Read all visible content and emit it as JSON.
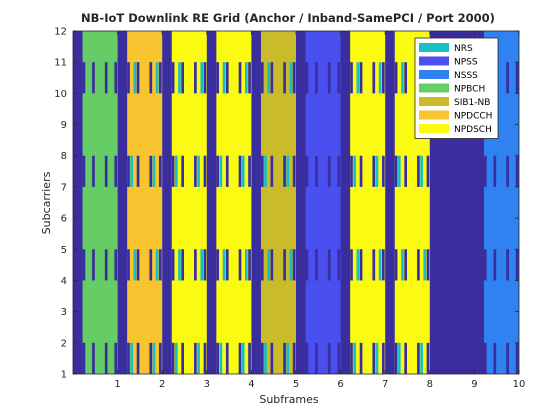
{
  "chart_data": {
    "type": "heatmap",
    "title": "NB-IoT Downlink RE Grid (Anchor / Inband-SamePCI / Port 2000)",
    "xlabel": "Subframes",
    "ylabel": "Subcarriers",
    "xlim": [
      0,
      10
    ],
    "ylim": [
      1,
      12
    ],
    "xticks": [
      1,
      2,
      3,
      4,
      5,
      6,
      7,
      8,
      9,
      10
    ],
    "yticks": [
      1,
      2,
      3,
      4,
      5,
      6,
      7,
      8,
      9,
      10,
      11,
      12
    ],
    "background_color": "#3a2e9e",
    "legend_position": "top-right",
    "legend": [
      {
        "name": "NRS",
        "color": "#17bfc6"
      },
      {
        "name": "NPSS",
        "color": "#4a4ff0"
      },
      {
        "name": "NSSS",
        "color": "#2f82f0"
      },
      {
        "name": "NPBCH",
        "color": "#66cc66"
      },
      {
        "name": "SIB1-NB",
        "color": "#c9bb2a"
      },
      {
        "name": "NPDCCH",
        "color": "#f8c531"
      },
      {
        "name": "NPDSCH",
        "color": "#fbfb12"
      }
    ],
    "legend_fontsize_note": "",
    "subframes": [
      {
        "subframe": 0,
        "channel": "NPBCH",
        "start_symbol": 3,
        "nrs": false
      },
      {
        "subframe": 1,
        "channel": "NPDCCH",
        "start_symbol": 3,
        "nrs": true
      },
      {
        "subframe": 2,
        "channel": "NPDSCH",
        "start_symbol": 3,
        "nrs": true
      },
      {
        "subframe": 3,
        "channel": "NPDSCH",
        "start_symbol": 3,
        "nrs": true
      },
      {
        "subframe": 4,
        "channel": "SIB1-NB",
        "start_symbol": 3,
        "nrs": true
      },
      {
        "subframe": 5,
        "channel": "NPSS",
        "start_symbol": 3,
        "nrs": false
      },
      {
        "subframe": 6,
        "channel": "NPDSCH",
        "start_symbol": 3,
        "nrs": true
      },
      {
        "subframe": 7,
        "channel": "NPDSCH",
        "start_symbol": 3,
        "nrs": true
      },
      {
        "subframe": 8,
        "channel": "NONE",
        "start_symbol": 3,
        "nrs": false
      },
      {
        "subframe": 9,
        "channel": "NSSS",
        "start_symbol": 3,
        "nrs": false
      }
    ],
    "nrs_symbols": [
      5,
      6,
      12,
      13
    ],
    "nrs_subcarrier_groups": [
      {
        "carriers": [
          1,
          7
        ],
        "symbols": [
          5,
          12
        ]
      },
      {
        "carriers": [
          4,
          10
        ],
        "symbols": [
          6,
          13
        ]
      }
    ],
    "crs_subcarrier_groups": [
      {
        "carriers": [
          1,
          4,
          7,
          10
        ],
        "symbols": [
          4,
          11
        ]
      },
      {
        "carriers": [
          1,
          4,
          7,
          10
        ],
        "symbols": [
          7,
          14
        ]
      }
    ]
  }
}
